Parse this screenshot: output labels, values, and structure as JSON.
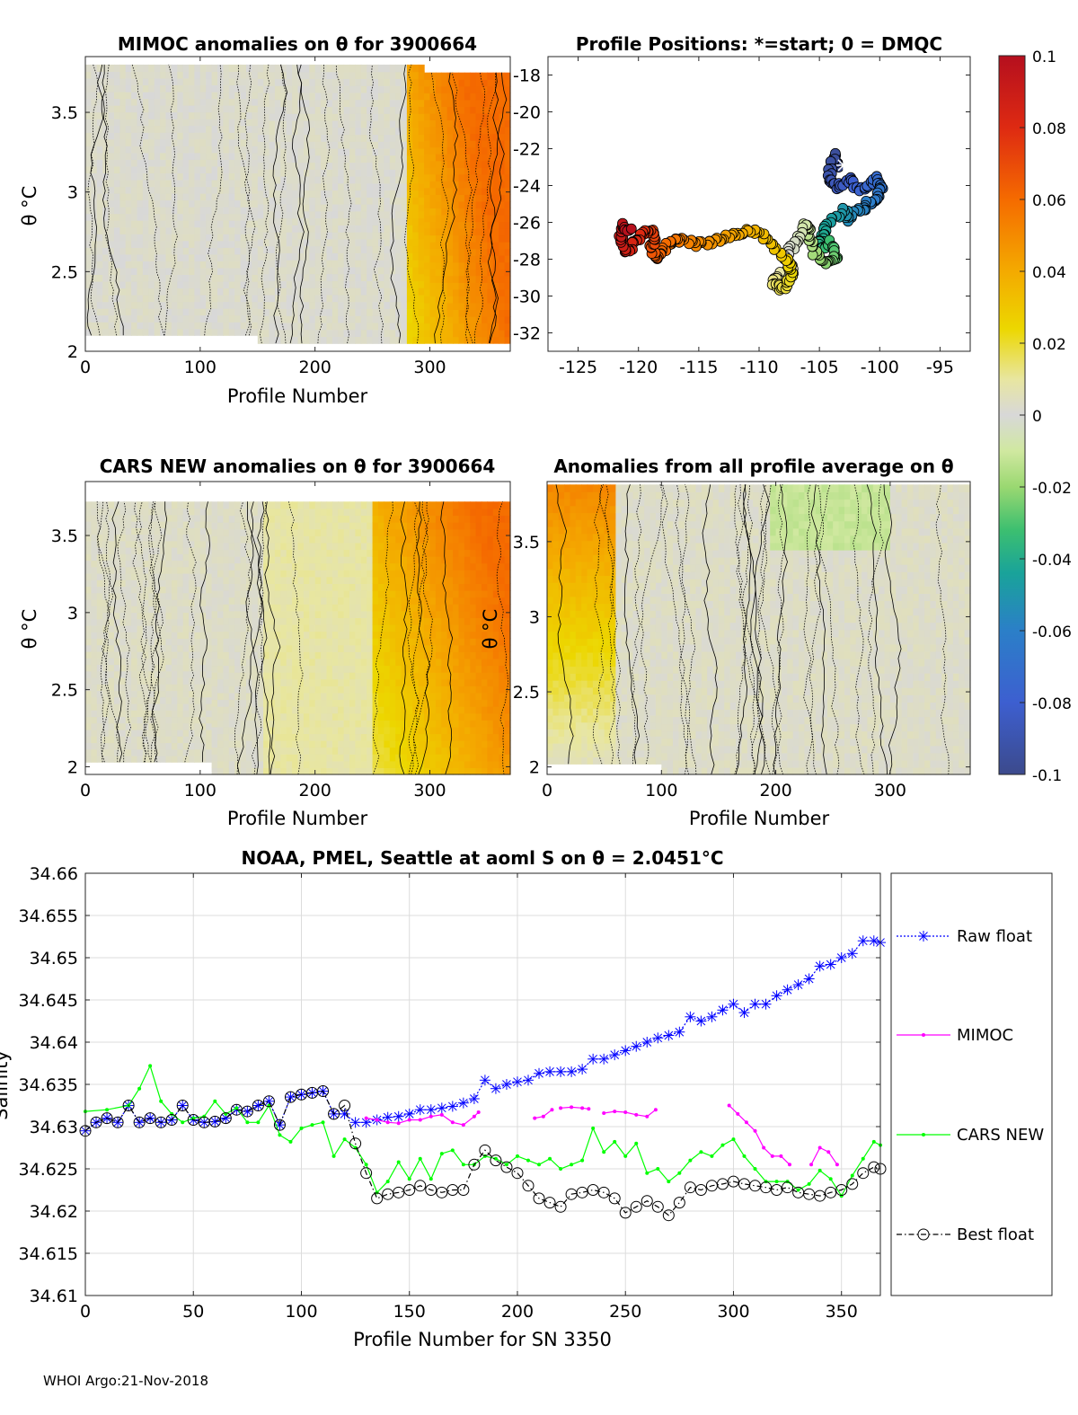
{
  "footer": "WHOI Argo:21-Nov-2018",
  "chart_data": [
    {
      "id": "mimoc",
      "type": "heatmap",
      "title": "MIMOC anomalies on θ  for 3900664",
      "xlabel": "Profile Number",
      "ylabel": "θ °C",
      "xlim": [
        0,
        370
      ],
      "ylim": [
        2.0,
        3.85
      ],
      "xticks": [
        0,
        100,
        200,
        300
      ],
      "yticks": [
        2,
        2.5,
        3,
        3.5
      ],
      "anomaly_trend": "near 0 for profiles 0-280, rising to about 0.04-0.06 for profiles 290-370"
    },
    {
      "id": "positions",
      "type": "scatter",
      "title": "Profile Positions: *=start; 0 = DMQC",
      "xlim": [
        -127.5,
        -92.5
      ],
      "ylim": [
        -33,
        -17
      ],
      "xticks": [
        -125,
        -120,
        -115,
        -110,
        -105,
        -100,
        -95
      ],
      "yticks": [
        -18,
        -20,
        -22,
        -24,
        -26,
        -28,
        -30,
        -32
      ],
      "track_lon": [
        -103.5,
        -103.8,
        -104.2,
        -103.7,
        -102.5,
        -101.5,
        -100.3,
        -99.8,
        -100.4,
        -101.3,
        -102.5,
        -103.0,
        -104.3,
        -104.8,
        -105.0,
        -104.0,
        -103.5,
        -104.5,
        -105.5,
        -105.8,
        -106.2,
        -106.8,
        -107.8,
        -107.2,
        -108.5,
        -108.8,
        -108.0,
        -107.2,
        -107.7,
        -109.0,
        -110.5,
        -112.0,
        -113.5,
        -115.0,
        -116.5,
        -117.5,
        -118.5,
        -118.9,
        -118.6,
        -119.5,
        -120.2,
        -121.0,
        -121.5,
        -121.2,
        -120.6
      ],
      "track_lat": [
        -23.0,
        -22.4,
        -23.6,
        -24.1,
        -23.7,
        -24.3,
        -23.6,
        -24.2,
        -24.7,
        -25.2,
        -25.8,
        -25.4,
        -26.1,
        -26.9,
        -27.5,
        -27.1,
        -27.9,
        -28.2,
        -27.6,
        -26.6,
        -26.1,
        -27.0,
        -27.9,
        -28.6,
        -28.9,
        -29.4,
        -29.6,
        -28.8,
        -28.1,
        -27.1,
        -26.4,
        -26.6,
        -27.0,
        -27.2,
        -26.9,
        -27.2,
        -27.9,
        -27.3,
        -26.6,
        -26.4,
        -27.0,
        -27.6,
        -26.8,
        -26.2,
        -26.4
      ],
      "start_marker": [
        -103.0,
        -22.9
      ]
    },
    {
      "id": "colorbar",
      "type": "heatmap",
      "ticks": [
        "0.1",
        "0.08",
        "0.06",
        "0.04",
        "0.02",
        "0",
        "-0.02",
        "-0.04",
        "-0.06",
        "-0.08",
        "-0.1"
      ],
      "range": [
        -0.1,
        0.1
      ]
    },
    {
      "id": "cars",
      "type": "heatmap",
      "title": "CARS NEW anomalies on θ for 3900664",
      "xlabel": "Profile Number",
      "ylabel": "θ °C",
      "xlim": [
        0,
        370
      ],
      "ylim": [
        1.95,
        3.85
      ],
      "xticks": [
        0,
        100,
        200,
        300
      ],
      "yticks": [
        2,
        2.5,
        3,
        3.5
      ],
      "anomaly_trend": "near 0 for profiles 0-250, about 0.02-0.04 for 260-320, about 0.05-0.06 near 320-350"
    },
    {
      "id": "allavg",
      "type": "heatmap",
      "title": "Anomalies from all profile average on θ",
      "xlabel": "Profile Number",
      "ylabel": "θ °C",
      "xlim": [
        0,
        370
      ],
      "ylim": [
        1.95,
        3.9
      ],
      "xticks": [
        0,
        100,
        200,
        300
      ],
      "yticks": [
        2,
        2.5,
        3,
        3.5
      ],
      "anomaly_trend": "about 0.05 at the top for early profiles, about 0.02 mid-depth, slightly negative near the top for profiles 200-300"
    },
    {
      "id": "salinity",
      "type": "line",
      "title": "NOAA, PMEL, Seattle at aoml S on θ = 2.0451°C",
      "xlabel": "Profile Number for SN 3350",
      "ylabel": "Salinity",
      "xlim": [
        0,
        368
      ],
      "ylim": [
        34.61,
        34.66
      ],
      "xticks": [
        0,
        50,
        100,
        150,
        200,
        250,
        300,
        350
      ],
      "yticks": [
        "34.61",
        "34.615",
        "34.62",
        "34.625",
        "34.63",
        "34.635",
        "34.64",
        "34.645",
        "34.65",
        "34.655",
        "34.66"
      ],
      "grid": true,
      "legend_position": "right",
      "series": [
        {
          "name": "Raw float",
          "color": "#0000ff",
          "marker": "star",
          "x": [
            0,
            5,
            10,
            15,
            20,
            25,
            30,
            35,
            40,
            45,
            50,
            55,
            60,
            65,
            70,
            75,
            80,
            85,
            90,
            95,
            100,
            105,
            110,
            115,
            120,
            125,
            130,
            135,
            140,
            145,
            150,
            155,
            160,
            165,
            170,
            175,
            180,
            185,
            190,
            195,
            200,
            205,
            210,
            215,
            220,
            225,
            230,
            235,
            240,
            245,
            250,
            255,
            260,
            265,
            270,
            275,
            280,
            285,
            290,
            295,
            300,
            305,
            310,
            315,
            320,
            325,
            330,
            335,
            340,
            345,
            350,
            355,
            360,
            365,
            368
          ],
          "values": [
            34.6295,
            34.6305,
            34.631,
            34.6305,
            34.6325,
            34.6305,
            34.631,
            34.6305,
            34.6308,
            34.6325,
            34.6308,
            34.6305,
            34.6306,
            34.631,
            34.632,
            34.6318,
            34.6325,
            34.633,
            34.6302,
            34.6335,
            34.6338,
            34.634,
            34.6342,
            34.6315,
            34.6315,
            34.6305,
            34.6305,
            34.6308,
            34.6311,
            34.6312,
            34.6315,
            34.632,
            34.632,
            34.6322,
            34.6324,
            34.6328,
            34.6333,
            34.6355,
            34.6345,
            34.635,
            34.6353,
            34.6355,
            34.6363,
            34.6365,
            34.6365,
            34.6365,
            34.6368,
            34.638,
            34.638,
            34.6385,
            34.639,
            34.6395,
            34.64,
            34.6405,
            34.6408,
            34.6412,
            34.643,
            34.6425,
            34.643,
            34.6438,
            34.6445,
            34.6435,
            34.6445,
            34.6445,
            34.6455,
            34.6462,
            34.6468,
            34.6475,
            34.649,
            34.6492,
            34.65,
            34.6505,
            34.652,
            34.652,
            34.6518
          ]
        },
        {
          "name": "MIMOC",
          "color": "#ff00ff",
          "marker": "dot",
          "x": [
            130,
            135,
            140,
            145,
            150,
            155,
            160,
            165,
            170,
            175,
            180,
            182,
            null,
            208,
            212,
            216,
            null,
            220,
            225,
            230,
            233,
            null,
            240,
            245,
            250,
            255,
            260,
            264,
            null,
            298,
            302,
            306,
            310,
            314,
            318,
            322,
            326,
            null,
            336,
            340,
            344,
            348
          ],
          "values": [
            34.631,
            34.6308,
            34.6305,
            34.6304,
            34.6308,
            34.6308,
            34.6312,
            34.6314,
            34.6305,
            34.6302,
            34.6312,
            34.6317,
            null,
            34.631,
            34.6312,
            34.632,
            null,
            34.6322,
            34.6323,
            34.6322,
            34.6321,
            null,
            34.6316,
            34.6318,
            34.6317,
            34.6314,
            34.6312,
            34.632,
            null,
            34.6325,
            34.6315,
            34.6305,
            34.6295,
            34.6275,
            34.6265,
            34.6265,
            34.6255,
            null,
            34.6255,
            34.6275,
            34.627,
            34.6255
          ]
        },
        {
          "name": "CARS NEW",
          "color": "#00ff00",
          "marker": "dot",
          "x": [
            0,
            10,
            20,
            25,
            30,
            35,
            40,
            45,
            50,
            55,
            60,
            65,
            70,
            75,
            80,
            85,
            90,
            95,
            100,
            105,
            110,
            115,
            120,
            125,
            130,
            135,
            140,
            145,
            150,
            155,
            160,
            165,
            170,
            175,
            180,
            185,
            190,
            195,
            200,
            205,
            210,
            215,
            220,
            225,
            230,
            235,
            240,
            245,
            250,
            255,
            260,
            265,
            270,
            275,
            280,
            285,
            290,
            295,
            300,
            305,
            310,
            315,
            320,
            325,
            330,
            335,
            340,
            345,
            350,
            355,
            360,
            365,
            368
          ],
          "values": [
            34.6318,
            34.632,
            34.6325,
            34.6345,
            34.6372,
            34.633,
            34.6315,
            34.6305,
            34.631,
            34.6312,
            34.633,
            34.6315,
            34.6322,
            34.6305,
            34.6305,
            34.6325,
            34.629,
            34.6282,
            34.6298,
            34.6302,
            34.6305,
            34.6265,
            34.6285,
            34.6275,
            34.6255,
            34.6222,
            34.6235,
            34.6258,
            34.6238,
            34.6262,
            34.6238,
            34.6268,
            34.6272,
            34.6255,
            34.6255,
            34.6265,
            34.6262,
            34.6255,
            34.6265,
            34.626,
            34.6255,
            34.6262,
            34.625,
            34.6255,
            34.626,
            34.6298,
            34.627,
            34.6282,
            34.6265,
            34.628,
            34.6245,
            34.625,
            34.6235,
            34.6245,
            34.626,
            34.627,
            34.6265,
            34.6278,
            34.6285,
            34.6265,
            34.625,
            34.6235,
            34.6235,
            34.6235,
            34.6225,
            34.6232,
            34.6248,
            34.6238,
            34.6218,
            34.6242,
            34.6262,
            34.6282,
            34.6278
          ]
        },
        {
          "name": "Best float",
          "color": "#000000",
          "marker": "circle",
          "x": [
            0,
            5,
            10,
            15,
            20,
            25,
            30,
            35,
            40,
            45,
            50,
            55,
            60,
            65,
            70,
            75,
            80,
            85,
            90,
            95,
            100,
            105,
            110,
            115,
            120,
            125,
            130,
            135,
            140,
            145,
            150,
            155,
            160,
            165,
            170,
            175,
            180,
            185,
            190,
            195,
            200,
            205,
            210,
            215,
            220,
            225,
            230,
            235,
            240,
            245,
            250,
            255,
            260,
            265,
            270,
            275,
            280,
            285,
            290,
            295,
            300,
            305,
            310,
            315,
            320,
            325,
            330,
            335,
            340,
            345,
            350,
            355,
            360,
            365,
            368
          ],
          "values": [
            34.6295,
            34.6305,
            34.631,
            34.6305,
            34.6325,
            34.6305,
            34.631,
            34.6305,
            34.6308,
            34.6325,
            34.6308,
            34.6305,
            34.6306,
            34.631,
            34.632,
            34.6318,
            34.6325,
            34.633,
            34.6302,
            34.6335,
            34.6338,
            34.634,
            34.6342,
            34.6315,
            34.6325,
            34.628,
            34.6245,
            34.6215,
            34.622,
            34.6222,
            34.6225,
            34.623,
            34.6225,
            34.6222,
            34.6225,
            34.6225,
            34.6255,
            34.6272,
            34.626,
            34.6252,
            34.6245,
            34.623,
            34.6215,
            34.621,
            34.6205,
            34.622,
            34.6222,
            34.6225,
            34.6222,
            34.6215,
            34.6198,
            34.6205,
            34.6212,
            34.6205,
            34.6195,
            34.621,
            34.6228,
            34.6225,
            34.623,
            34.6232,
            34.6235,
            34.6232,
            34.623,
            34.6228,
            34.6225,
            34.6228,
            34.6222,
            34.622,
            34.6218,
            34.6222,
            34.6225,
            34.6232,
            34.6245,
            34.6252,
            34.625
          ]
        }
      ]
    }
  ]
}
